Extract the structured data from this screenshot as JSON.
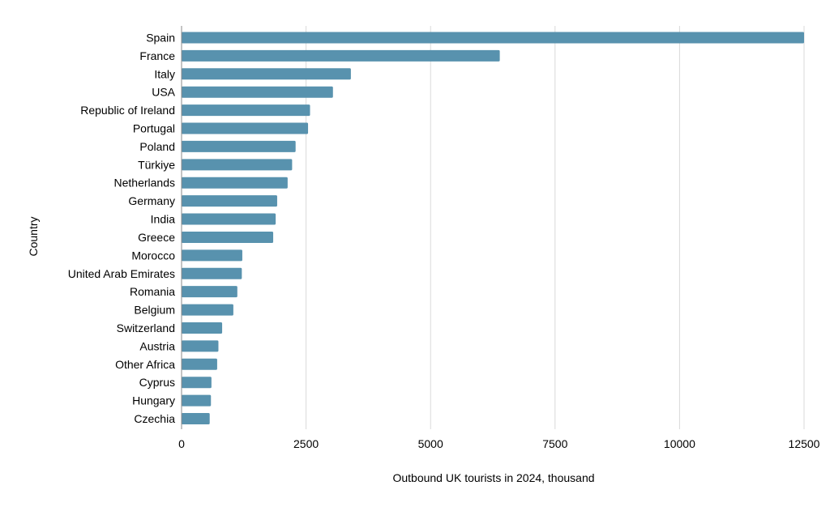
{
  "chart_data": {
    "type": "bar",
    "orientation": "horizontal",
    "title": "",
    "xlabel": "Outbound UK tourists in 2024, thousand",
    "ylabel": "Country",
    "xlim": [
      0,
      12500
    ],
    "xticks": [
      0,
      2500,
      5000,
      7500,
      10000,
      12500
    ],
    "grid": "vertical",
    "bar_color": "#5892ae",
    "categories": [
      "Spain",
      "France",
      "Italy",
      "USA",
      "Republic of Ireland",
      "Portugal",
      "Poland",
      "Türkiye",
      "Netherlands",
      "Germany",
      "India",
      "Greece",
      "Morocco",
      "United Arab Emirates",
      "Romania",
      "Belgium",
      "Switzerland",
      "Austria",
      "Other Africa",
      "Cyprus",
      "Hungary",
      "Czechia"
    ],
    "values": [
      12500,
      6390,
      3400,
      3040,
      2580,
      2540,
      2290,
      2220,
      2130,
      1920,
      1890,
      1840,
      1220,
      1210,
      1120,
      1040,
      815,
      740,
      715,
      600,
      590,
      565
    ]
  }
}
